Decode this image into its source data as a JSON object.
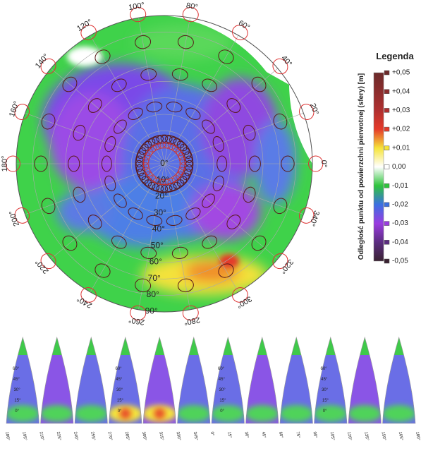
{
  "map": {
    "longitude_ticks": [
      {
        "value": 0,
        "label": "0°"
      },
      {
        "value": 20,
        "label": "20°"
      },
      {
        "value": 40,
        "label": "40°"
      },
      {
        "value": 60,
        "label": "60°"
      },
      {
        "value": 80,
        "label": "80°"
      },
      {
        "value": 100,
        "label": "100°"
      },
      {
        "value": 120,
        "label": "120°"
      },
      {
        "value": 140,
        "label": "140°"
      },
      {
        "value": 160,
        "label": "160°"
      },
      {
        "value": 180,
        "label": "180°"
      },
      {
        "value": 200,
        "label": "200°"
      },
      {
        "value": 220,
        "label": "220°"
      },
      {
        "value": 240,
        "label": "240°"
      },
      {
        "value": 260,
        "label": "260°"
      },
      {
        "value": 280,
        "label": "280°"
      },
      {
        "value": 300,
        "label": "300°"
      },
      {
        "value": 320,
        "label": "320°"
      },
      {
        "value": 340,
        "label": "340°"
      }
    ],
    "latitude_ticks": [
      {
        "value": 0,
        "label": "0°"
      },
      {
        "value": 10,
        "label": "10°"
      },
      {
        "value": 20,
        "label": "20°"
      },
      {
        "value": 30,
        "label": "30°"
      },
      {
        "value": 40,
        "label": "40°"
      },
      {
        "value": 50,
        "label": "50°"
      },
      {
        "value": 60,
        "label": "60°"
      },
      {
        "value": 70,
        "label": "70°"
      },
      {
        "value": 80,
        "label": "80°"
      },
      {
        "value": 90,
        "label": "90°"
      }
    ]
  },
  "legend": {
    "title": "Legenda",
    "axis_label": "Odległość punktu od powierzchni pierwotnej (sfery) [m]",
    "ticks": [
      {
        "value": 0.05,
        "label": "+0,05",
        "color": "#6b2b2b"
      },
      {
        "value": 0.04,
        "label": "+0,04",
        "color": "#8c2d2d"
      },
      {
        "value": 0.03,
        "label": "+0,03",
        "color": "#b03030"
      },
      {
        "value": 0.02,
        "label": "+0,02",
        "color": "#e53a2a"
      },
      {
        "value": 0.01,
        "label": "+0,01",
        "color": "#f6e43a"
      },
      {
        "value": 0,
        "label": "0,00",
        "color": "#ffffff"
      },
      {
        "value": -0.01,
        "label": "-0,01",
        "color": "#2fc43c"
      },
      {
        "value": -0.02,
        "label": "-0,02",
        "color": "#3b6fe2"
      },
      {
        "value": -0.03,
        "label": "-0,03",
        "color": "#9a3ce0"
      },
      {
        "value": -0.04,
        "label": "-0,04",
        "color": "#5b2d80"
      },
      {
        "value": -0.05,
        "label": "-0,05",
        "color": "#3a2232"
      }
    ]
  },
  "gores": {
    "latitude_labels": [
      "60°",
      "45°",
      "30°",
      "15°",
      "0°"
    ],
    "longitude_labels": [
      "180°",
      "195°",
      "210°",
      "225°",
      "240°",
      "255°",
      "270°",
      "285°",
      "300°",
      "315°",
      "330°",
      "345°",
      "0°",
      "15°",
      "30°",
      "45°",
      "60°",
      "75°",
      "90°",
      "105°",
      "120°",
      "135°",
      "150°",
      "165°",
      "180°"
    ]
  }
}
